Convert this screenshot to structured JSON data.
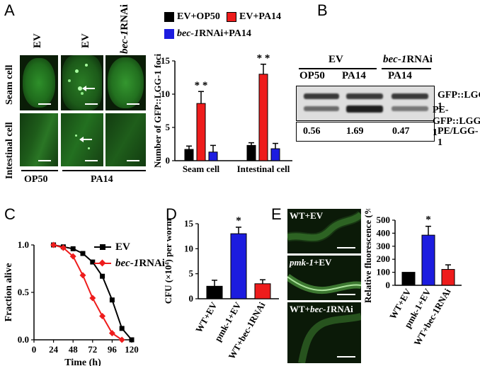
{
  "panel_labels": {
    "A": "A",
    "B": "B",
    "C": "C",
    "D": "D",
    "E": "E"
  },
  "panel_a": {
    "col_labels": [
      "EV",
      "EV",
      "bec-1RNAi"
    ],
    "col_label_parts": [
      {
        "italic": "",
        "rest": "EV"
      },
      {
        "italic": "",
        "rest": "EV"
      },
      {
        "italic": "bec-1",
        "rest": "RNAi"
      }
    ],
    "row_labels": [
      "Seam cell",
      "Intestinal cell"
    ],
    "bottom_labels": [
      "OP50",
      "PA14"
    ],
    "legend": [
      {
        "italic": "",
        "text": "EV+OP50",
        "color": "#000000"
      },
      {
        "italic": "",
        "text": "EV+PA14",
        "color": "#ee1c1c"
      },
      {
        "italic": "bec-1",
        "text": "RNAi+PA14",
        "color": "#1c1cdf"
      }
    ]
  },
  "panel_b": {
    "group_labels": [
      {
        "italic": "",
        "text": "EV"
      },
      {
        "italic": "bec-1",
        "text": "RNAi"
      }
    ],
    "lane_labels": [
      "OP50",
      "PA14",
      "PA14"
    ],
    "band_labels": [
      "GFP::LGG-1",
      "PE-GFP::LGG-1"
    ],
    "ratios": [
      "0.56",
      "1.69",
      "0.47"
    ],
    "ratio_label": "PE/LGG-1"
  },
  "panel_e": {
    "image_labels": [
      {
        "italic": "",
        "text": "WT+EV"
      },
      {
        "italic": "pmk-1",
        "text": "+EV"
      },
      {
        "italic": "",
        "text": "WT+",
        "italic2": "bec-1",
        "text2": "RNAi"
      }
    ]
  },
  "chart_data": [
    {
      "id": "A-bar",
      "type": "bar",
      "ylabel": "Number of GFP::LGG-1 foci",
      "categories": [
        "Seam cell",
        "Intestinal cell"
      ],
      "ylim": [
        0,
        15
      ],
      "yticks": [
        0,
        5,
        10,
        15
      ],
      "series": [
        {
          "name": "EV+OP50",
          "color": "#000000",
          "values": [
            1.7,
            2.3
          ],
          "errors": [
            0.5,
            0.4
          ]
        },
        {
          "name": "EV+PA14",
          "color": "#ee1c1c",
          "values": [
            8.6,
            13.0
          ],
          "errors": [
            1.8,
            1.5
          ]
        },
        {
          "name": "bec-1RNAi+PA14",
          "color": "#1c1cdf",
          "values": [
            1.3,
            1.8
          ],
          "errors": [
            1.0,
            0.8
          ]
        }
      ],
      "annotations": [
        "* *",
        "* *"
      ]
    },
    {
      "id": "C-survival",
      "type": "line",
      "xlabel": "Time (h)",
      "ylabel": "Fraction alive",
      "xlim": [
        0,
        120
      ],
      "ylim": [
        0,
        1.0
      ],
      "xticks": [
        0,
        24,
        48,
        72,
        96,
        120
      ],
      "yticks": [
        0.0,
        0.5,
        1.0
      ],
      "ytick_labels": [
        "0.0",
        "0.5",
        "1.0"
      ],
      "series": [
        {
          "name": "EV",
          "color": "#000000",
          "marker": "square",
          "x": [
            24,
            36,
            48,
            60,
            72,
            84,
            96,
            108,
            120
          ],
          "y": [
            1.0,
            0.98,
            0.96,
            0.91,
            0.82,
            0.67,
            0.42,
            0.12,
            0.0
          ]
        },
        {
          "name": "bec-1RNAi",
          "name_italic": "bec-1",
          "name_rest": "RNAi",
          "color": "#ee1c1c",
          "marker": "diamond",
          "x": [
            24,
            36,
            48,
            60,
            72,
            84,
            96,
            108
          ],
          "y": [
            1.0,
            0.97,
            0.88,
            0.68,
            0.44,
            0.25,
            0.07,
            0.0
          ]
        }
      ]
    },
    {
      "id": "D-bar",
      "type": "bar",
      "ylabel": "CFU (×10⁴) per worm",
      "ylim": [
        0,
        15
      ],
      "yticks": [
        0,
        5,
        10,
        15
      ],
      "categories": [
        "WT+EV",
        "pmk-1+EV",
        "WT+bec-1RNAi"
      ],
      "values": [
        2.5,
        13.0,
        3.0
      ],
      "errors": [
        1.2,
        1.3,
        0.8
      ],
      "colors": [
        "#000000",
        "#1c1cdf",
        "#ee1c1c"
      ],
      "annotations": [
        "",
        "*",
        ""
      ]
    },
    {
      "id": "E-bar",
      "type": "bar",
      "ylabel": "Relative fluorescence (%)",
      "ylim": [
        0,
        500
      ],
      "yticks": [
        0,
        100,
        200,
        300,
        400,
        500
      ],
      "categories": [
        "WT+EV",
        "pmk-1+EV",
        "WT+bec-1RNAi"
      ],
      "values": [
        100,
        385,
        122
      ],
      "errors": [
        0,
        68,
        35
      ],
      "colors": [
        "#000000",
        "#1c1cdf",
        "#ee1c1c"
      ],
      "annotations": [
        "",
        "*",
        ""
      ]
    }
  ]
}
